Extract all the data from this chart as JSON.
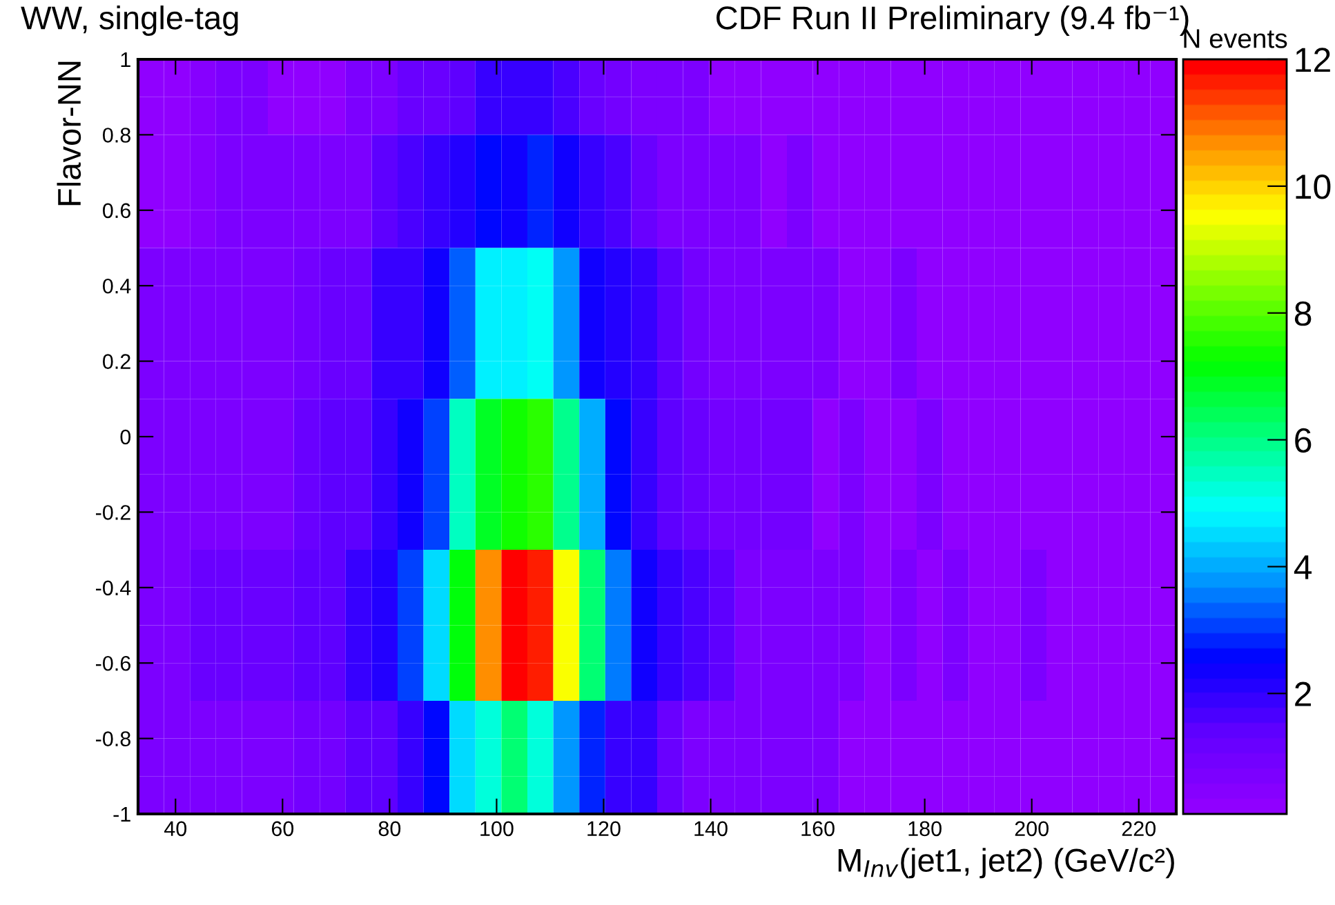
{
  "chart_data": {
    "type": "heatmap",
    "title": "WW, single-tag",
    "subtitle": "CDF Run II Preliminary (9.4 fb⁻¹)",
    "xlabel": "M$_{Inv}$(jet1, jet2) (GeV/c²)",
    "ylabel": "Flavor-NN",
    "clabel": "N events",
    "x": [
      35.4,
      40.3,
      45.1,
      50.0,
      54.8,
      59.7,
      64.5,
      69.4,
      74.2,
      79.1,
      83.9,
      88.8,
      93.6,
      98.5,
      103.3,
      108.2,
      113.0,
      117.9,
      122.7,
      127.6,
      132.4,
      137.3,
      142.1,
      147.0,
      151.8,
      156.7,
      161.5,
      166.4,
      171.2,
      176.1,
      180.9,
      185.8,
      190.6,
      195.5,
      200.3,
      205.2,
      210.0,
      214.9,
      219.7,
      224.6
    ],
    "y": [
      0.95,
      0.85,
      0.75,
      0.65,
      0.55,
      0.45,
      0.35,
      0.25,
      0.15,
      0.05,
      -0.05,
      -0.15,
      -0.25,
      -0.35,
      -0.45,
      -0.55,
      -0.65,
      -0.75,
      -0.85,
      -0.95
    ],
    "xlim": [
      33,
      227
    ],
    "xticks": [
      40,
      60,
      80,
      100,
      120,
      140,
      160,
      180,
      200,
      220
    ],
    "ylim": [
      -1,
      1
    ],
    "yticks": [
      -1,
      -0.8,
      -0.6,
      -0.4,
      -0.2,
      0,
      0.2,
      0.4,
      0.6,
      0.8,
      1
    ],
    "clim": [
      0.1,
      12
    ],
    "cticks": [
      2,
      4,
      6,
      8,
      10,
      12
    ],
    "cells": [
      [
        0.3,
        0.3,
        0.5,
        0.8,
        0.8,
        0.3,
        0.3,
        0.3,
        0.7,
        0.7,
        1.1,
        1.1,
        1.5,
        1.8,
        2.0,
        2.0,
        1.6,
        1.1,
        0.9,
        0.8,
        0.8,
        0.8,
        0.3,
        0.3,
        0.3,
        0.3,
        0.3,
        0.3,
        0.3,
        0.3,
        0.3,
        0.3,
        0.3,
        0.3,
        0.3,
        0.3,
        0.3,
        0.3,
        0.3,
        0.3
      ],
      [
        0.3,
        0.3,
        0.5,
        0.8,
        0.8,
        0.3,
        0.3,
        0.3,
        0.7,
        0.7,
        1.1,
        1.1,
        1.5,
        1.8,
        2.0,
        2.0,
        1.6,
        1.1,
        0.9,
        0.8,
        0.8,
        0.8,
        0.3,
        0.3,
        0.3,
        0.3,
        0.3,
        0.3,
        0.3,
        0.3,
        0.3,
        0.3,
        0.3,
        0.3,
        0.3,
        0.3,
        0.3,
        0.3,
        0.3,
        0.3
      ],
      [
        0.3,
        0.3,
        0.5,
        0.8,
        0.8,
        0.8,
        0.7,
        0.7,
        0.8,
        1.3,
        1.6,
        1.9,
        2.1,
        2.7,
        2.4,
        2.8,
        2.3,
        1.9,
        1.6,
        1.1,
        0.8,
        0.8,
        0.8,
        0.8,
        0.3,
        0.8,
        0.3,
        0.3,
        0.3,
        0.3,
        0.3,
        0.3,
        0.3,
        0.3,
        0.3,
        0.3,
        0.3,
        0.3,
        0.3,
        0.3
      ],
      [
        0.3,
        0.3,
        0.5,
        0.8,
        0.8,
        0.8,
        0.7,
        0.7,
        0.8,
        1.3,
        1.6,
        1.9,
        2.1,
        2.7,
        2.4,
        2.8,
        2.3,
        1.9,
        1.6,
        1.1,
        0.8,
        0.8,
        0.8,
        0.8,
        0.3,
        0.8,
        0.3,
        0.3,
        0.3,
        0.3,
        0.3,
        0.3,
        0.3,
        0.3,
        0.3,
        0.3,
        0.3,
        0.3,
        0.3,
        0.3
      ],
      [
        0.3,
        0.3,
        0.5,
        0.8,
        0.8,
        0.8,
        0.7,
        0.7,
        0.8,
        1.3,
        1.6,
        1.9,
        2.1,
        2.7,
        2.4,
        2.8,
        2.3,
        1.9,
        1.6,
        1.1,
        0.8,
        0.8,
        0.8,
        0.8,
        0.3,
        0.8,
        0.3,
        0.3,
        0.3,
        0.3,
        0.3,
        0.3,
        0.3,
        0.3,
        0.3,
        0.3,
        0.3,
        0.3,
        0.3,
        0.3
      ],
      [
        0.8,
        0.8,
        0.8,
        0.8,
        0.8,
        0.8,
        0.9,
        1.1,
        1.1,
        1.8,
        2.0,
        2.3,
        3.4,
        4.7,
        4.7,
        5.0,
        3.9,
        2.4,
        2.1,
        1.8,
        1.4,
        1.0,
        0.8,
        0.8,
        0.8,
        0.8,
        0.8,
        0.3,
        0.3,
        0.8,
        0.3,
        0.3,
        0.3,
        0.3,
        0.3,
        0.3,
        0.3,
        0.3,
        0.3,
        0.3
      ],
      [
        0.8,
        0.8,
        0.8,
        0.8,
        0.8,
        0.8,
        0.9,
        1.1,
        1.1,
        1.8,
        2.0,
        2.3,
        3.4,
        4.7,
        4.7,
        5.0,
        3.9,
        2.4,
        2.1,
        1.8,
        1.4,
        1.0,
        0.8,
        0.8,
        0.8,
        0.8,
        0.8,
        0.3,
        0.3,
        0.8,
        0.3,
        0.3,
        0.3,
        0.3,
        0.3,
        0.3,
        0.3,
        0.3,
        0.3,
        0.3
      ],
      [
        0.8,
        0.8,
        0.8,
        0.8,
        0.8,
        0.8,
        0.9,
        1.1,
        1.1,
        1.8,
        2.0,
        2.3,
        3.4,
        4.7,
        4.7,
        5.0,
        3.9,
        2.4,
        2.1,
        1.8,
        1.4,
        1.0,
        0.8,
        0.8,
        0.8,
        0.8,
        0.8,
        0.3,
        0.3,
        0.8,
        0.3,
        0.3,
        0.3,
        0.3,
        0.3,
        0.3,
        0.3,
        0.3,
        0.3,
        0.3
      ],
      [
        0.8,
        0.8,
        0.8,
        0.8,
        0.8,
        0.8,
        0.9,
        1.1,
        1.1,
        1.8,
        2.0,
        2.3,
        3.4,
        4.7,
        4.7,
        5.0,
        3.9,
        2.4,
        2.1,
        1.8,
        1.4,
        1.0,
        0.8,
        0.8,
        0.8,
        0.8,
        0.8,
        0.3,
        0.3,
        0.8,
        0.3,
        0.3,
        0.3,
        0.3,
        0.3,
        0.3,
        0.3,
        0.3,
        0.3,
        0.3
      ],
      [
        0.8,
        0.8,
        0.8,
        0.8,
        0.8,
        0.8,
        1.2,
        1.4,
        1.5,
        1.8,
        2.3,
        3.0,
        5.5,
        6.8,
        7.4,
        7.7,
        6.0,
        4.1,
        2.5,
        1.9,
        1.5,
        1.2,
        0.9,
        0.9,
        0.9,
        0.9,
        0.3,
        0.8,
        0.3,
        0.3,
        0.8,
        0.3,
        0.3,
        0.3,
        0.3,
        0.3,
        0.3,
        0.3,
        0.3,
        0.3
      ],
      [
        0.8,
        0.8,
        0.8,
        0.8,
        0.8,
        0.8,
        1.2,
        1.4,
        1.5,
        1.8,
        2.3,
        3.0,
        5.5,
        6.8,
        7.4,
        7.7,
        6.0,
        4.1,
        2.5,
        1.9,
        1.5,
        1.2,
        0.9,
        0.9,
        0.9,
        0.9,
        0.3,
        0.8,
        0.3,
        0.3,
        0.8,
        0.3,
        0.3,
        0.3,
        0.3,
        0.3,
        0.3,
        0.3,
        0.3,
        0.3
      ],
      [
        0.8,
        0.8,
        0.8,
        0.8,
        0.8,
        0.8,
        1.2,
        1.4,
        1.5,
        1.8,
        2.3,
        3.0,
        5.5,
        6.8,
        7.4,
        7.7,
        6.0,
        4.1,
        2.5,
        1.9,
        1.5,
        1.2,
        0.9,
        0.9,
        0.9,
        0.9,
        0.3,
        0.8,
        0.3,
        0.3,
        0.8,
        0.3,
        0.3,
        0.3,
        0.3,
        0.3,
        0.3,
        0.3,
        0.3,
        0.3
      ],
      [
        0.8,
        0.8,
        0.8,
        0.8,
        0.8,
        0.8,
        1.2,
        1.4,
        1.5,
        1.8,
        2.3,
        3.0,
        5.5,
        6.8,
        7.4,
        7.7,
        6.0,
        4.1,
        2.5,
        1.9,
        1.5,
        1.2,
        0.9,
        0.9,
        0.9,
        0.9,
        0.3,
        0.8,
        0.3,
        0.3,
        0.8,
        0.3,
        0.3,
        0.3,
        0.3,
        0.3,
        0.3,
        0.3,
        0.3,
        0.3
      ],
      [
        0.8,
        0.8,
        1.2,
        1.2,
        1.2,
        1.2,
        1.5,
        1.5,
        1.9,
        2.2,
        3.0,
        4.6,
        7.2,
        10.8,
        12,
        11.6,
        9.4,
        6.2,
        3.5,
        2.3,
        1.9,
        1.6,
        1.3,
        0.8,
        0.8,
        0.8,
        0.8,
        0.8,
        0.3,
        0.8,
        0.3,
        0.8,
        0.3,
        0.3,
        0.7,
        0.3,
        0.3,
        0.3,
        0.3,
        0.3
      ],
      [
        0.8,
        0.8,
        1.2,
        1.2,
        1.2,
        1.2,
        1.5,
        1.5,
        1.9,
        2.2,
        3.0,
        4.6,
        7.2,
        10.8,
        12,
        11.6,
        9.4,
        6.2,
        3.5,
        2.3,
        1.9,
        1.6,
        1.3,
        0.8,
        0.8,
        0.8,
        0.8,
        0.8,
        0.3,
        0.8,
        0.3,
        0.8,
        0.3,
        0.3,
        0.7,
        0.3,
        0.3,
        0.3,
        0.3,
        0.3
      ],
      [
        0.8,
        0.8,
        1.2,
        1.2,
        1.2,
        1.2,
        1.5,
        1.5,
        1.9,
        2.2,
        3.0,
        4.6,
        7.2,
        10.8,
        12,
        11.6,
        9.4,
        6.2,
        3.5,
        2.3,
        1.9,
        1.6,
        1.3,
        0.8,
        0.8,
        0.8,
        0.8,
        0.8,
        0.3,
        0.8,
        0.3,
        0.8,
        0.3,
        0.3,
        0.7,
        0.3,
        0.3,
        0.3,
        0.3,
        0.3
      ],
      [
        0.8,
        0.8,
        1.2,
        1.2,
        1.2,
        1.2,
        1.5,
        1.5,
        1.9,
        2.2,
        3.0,
        4.6,
        7.2,
        10.8,
        12,
        11.6,
        9.4,
        6.2,
        3.5,
        2.3,
        1.9,
        1.6,
        1.3,
        0.8,
        0.8,
        0.8,
        0.8,
        0.8,
        0.3,
        0.8,
        0.3,
        0.8,
        0.3,
        0.3,
        0.7,
        0.3,
        0.3,
        0.3,
        0.3,
        0.3
      ],
      [
        0.8,
        0.8,
        0.8,
        0.8,
        0.8,
        0.8,
        0.9,
        1.0,
        1.5,
        1.5,
        2.0,
        2.6,
        4.4,
        5.3,
        6.2,
        5.3,
        3.9,
        2.8,
        2.0,
        1.8,
        1.2,
        0.8,
        0.8,
        0.8,
        0.8,
        0.8,
        0.8,
        0.3,
        0.3,
        0.3,
        0.3,
        0.3,
        0.3,
        0.3,
        0.3,
        0.3,
        0.3,
        0.3,
        0.3,
        0.3
      ],
      [
        0.8,
        0.8,
        0.8,
        0.8,
        0.8,
        0.8,
        0.9,
        1.0,
        1.5,
        1.5,
        2.0,
        2.6,
        4.4,
        5.3,
        6.2,
        5.3,
        3.9,
        2.8,
        2.0,
        1.8,
        1.2,
        0.8,
        0.8,
        0.8,
        0.8,
        0.8,
        0.8,
        0.3,
        0.3,
        0.3,
        0.3,
        0.3,
        0.3,
        0.3,
        0.3,
        0.3,
        0.3,
        0.3,
        0.3,
        0.3
      ],
      [
        0.8,
        0.8,
        0.8,
        0.8,
        0.8,
        0.8,
        0.9,
        1.0,
        1.5,
        1.5,
        2.0,
        2.6,
        4.4,
        5.3,
        6.2,
        5.3,
        3.9,
        2.8,
        2.0,
        1.8,
        1.2,
        0.8,
        0.8,
        0.8,
        0.8,
        0.8,
        0.8,
        0.3,
        0.3,
        0.3,
        0.3,
        0.3,
        0.3,
        0.3,
        0.3,
        0.3,
        0.3,
        0.3,
        0.3,
        0.3
      ]
    ]
  }
}
